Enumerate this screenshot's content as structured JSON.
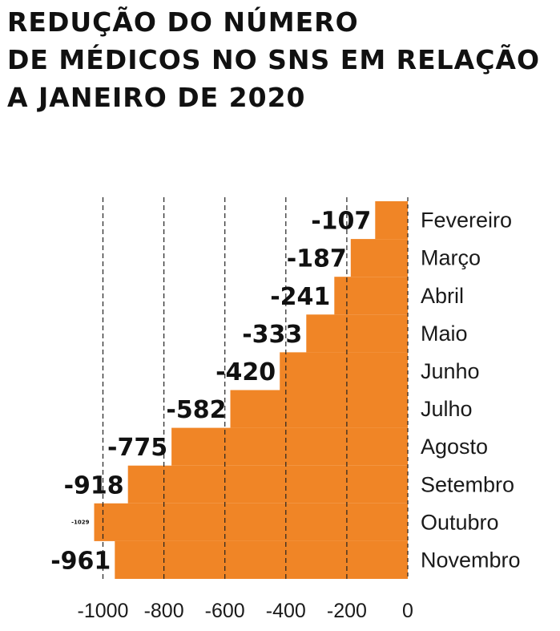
{
  "title_lines": [
    "REDUÇÃO DO NÚMERO",
    "DE MÉDICOS NO SNS EM RELAÇÃO",
    "A JANEIRO DE 2020"
  ],
  "colors": {
    "bar": "#f08526",
    "text": "#111111",
    "gridline": "#222222"
  },
  "chart_data": {
    "type": "bar",
    "orientation": "horizontal",
    "title": "REDUÇÃO DO NÚMERO DE MÉDICOS NO SNS EM RELAÇÃO A JANEIRO DE 2020",
    "categories": [
      "Fevereiro",
      "Março",
      "Abril",
      "Maio",
      "Junho",
      "Julho",
      "Agosto",
      "Setembro",
      "Outubro",
      "Novembro"
    ],
    "values": [
      -107,
      -187,
      -241,
      -333,
      -420,
      -582,
      -775,
      -918,
      -1029,
      -961
    ],
    "value_labels": [
      "-107",
      "-187",
      "-241",
      "-333",
      "-420",
      "-582",
      "-775",
      "-918",
      "-1029",
      "-961"
    ],
    "x_ticks": [
      -1000,
      -800,
      -600,
      -400,
      -200,
      0
    ],
    "x_tick_labels": [
      "-1000",
      "-800",
      "-600",
      "-400",
      "-200",
      "0"
    ],
    "xlim": [
      -1029,
      0
    ],
    "grid": true,
    "xlabel": "",
    "ylabel": ""
  }
}
